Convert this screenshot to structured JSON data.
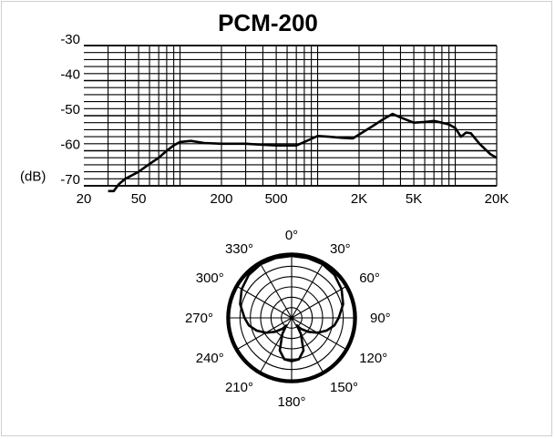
{
  "title": "PCM-200",
  "chart_data": [
    {
      "type": "line",
      "subtype": "frequency-response",
      "x_scale": "log",
      "xlim": [
        20,
        20000
      ],
      "ylim": [
        -70,
        -30
      ],
      "y_unit_label": "(dB)",
      "y_ticks": [
        {
          "value": -30,
          "label": "-30"
        },
        {
          "value": -40,
          "label": "-40"
        },
        {
          "value": -50,
          "label": "-50"
        },
        {
          "value": -60,
          "label": "-60"
        },
        {
          "value": -70,
          "label": "-70"
        }
      ],
      "x_ticks": [
        {
          "value": 20,
          "label": "20"
        },
        {
          "value": 50,
          "label": "50"
        },
        {
          "value": 200,
          "label": "200"
        },
        {
          "value": 500,
          "label": "500"
        },
        {
          "value": 2000,
          "label": "2K"
        },
        {
          "value": 5000,
          "label": "5K"
        },
        {
          "value": 20000,
          "label": "20K"
        }
      ],
      "grid": true,
      "series": [
        {
          "points": [
            [
              30,
              -71.5
            ],
            [
              33,
              -71.5
            ],
            [
              36,
              -69.5
            ],
            [
              40,
              -68
            ],
            [
              50,
              -66
            ],
            [
              60,
              -63.8
            ],
            [
              70,
              -62
            ],
            [
              80,
              -60
            ],
            [
              90,
              -58.5
            ],
            [
              100,
              -57.5
            ],
            [
              120,
              -57.2
            ],
            [
              150,
              -57.8
            ],
            [
              200,
              -58
            ],
            [
              300,
              -58
            ],
            [
              400,
              -58.3
            ],
            [
              500,
              -58.5
            ],
            [
              700,
              -58.5
            ],
            [
              800,
              -57.5
            ],
            [
              1000,
              -55.8
            ],
            [
              1200,
              -56
            ],
            [
              1500,
              -56.3
            ],
            [
              1800,
              -56.5
            ],
            [
              2500,
              -53
            ],
            [
              3000,
              -51
            ],
            [
              3500,
              -49.5
            ],
            [
              4000,
              -50.5
            ],
            [
              5000,
              -52
            ],
            [
              6000,
              -51.8
            ],
            [
              7000,
              -51.5
            ],
            [
              8000,
              -52
            ],
            [
              9000,
              -52.5
            ],
            [
              10000,
              -53.5
            ],
            [
              11000,
              -56
            ],
            [
              12000,
              -54.8
            ],
            [
              13000,
              -55
            ],
            [
              15000,
              -58
            ],
            [
              18000,
              -61
            ],
            [
              20000,
              -62
            ]
          ]
        }
      ]
    },
    {
      "type": "polar",
      "subtype": "polar-pattern",
      "angle_labels": [
        {
          "deg": 0,
          "label": "0°"
        },
        {
          "deg": 30,
          "label": "30°"
        },
        {
          "deg": 60,
          "label": "60°"
        },
        {
          "deg": 90,
          "label": "90°"
        },
        {
          "deg": 120,
          "label": "120°"
        },
        {
          "deg": 150,
          "label": "150°"
        },
        {
          "deg": 180,
          "label": "180°"
        },
        {
          "deg": 210,
          "label": "210°"
        },
        {
          "deg": 240,
          "label": "240°"
        },
        {
          "deg": 270,
          "label": "270°"
        },
        {
          "deg": 300,
          "label": "300°"
        },
        {
          "deg": 330,
          "label": "330°"
        }
      ],
      "rings": 6,
      "spoke_step_deg": 30,
      "series": [
        {
          "points": [
            [
              0,
              1.0
            ],
            [
              15,
              1.0
            ],
            [
              30,
              1.0
            ],
            [
              45,
              0.98
            ],
            [
              60,
              0.93
            ],
            [
              75,
              0.86
            ],
            [
              90,
              0.76
            ],
            [
              100,
              0.7
            ],
            [
              110,
              0.6
            ],
            [
              120,
              0.48
            ],
            [
              130,
              0.35
            ],
            [
              140,
              0.23
            ],
            [
              145,
              0.15
            ],
            [
              150,
              0.3
            ],
            [
              160,
              0.56
            ],
            [
              170,
              0.68
            ],
            [
              180,
              0.7
            ],
            [
              190,
              0.68
            ],
            [
              200,
              0.56
            ],
            [
              210,
              0.3
            ],
            [
              215,
              0.15
            ],
            [
              220,
              0.23
            ],
            [
              230,
              0.35
            ],
            [
              240,
              0.48
            ],
            [
              250,
              0.6
            ],
            [
              260,
              0.7
            ],
            [
              270,
              0.76
            ],
            [
              285,
              0.86
            ],
            [
              300,
              0.93
            ],
            [
              315,
              0.98
            ],
            [
              330,
              1.0
            ],
            [
              345,
              1.0
            ]
          ]
        }
      ]
    }
  ]
}
